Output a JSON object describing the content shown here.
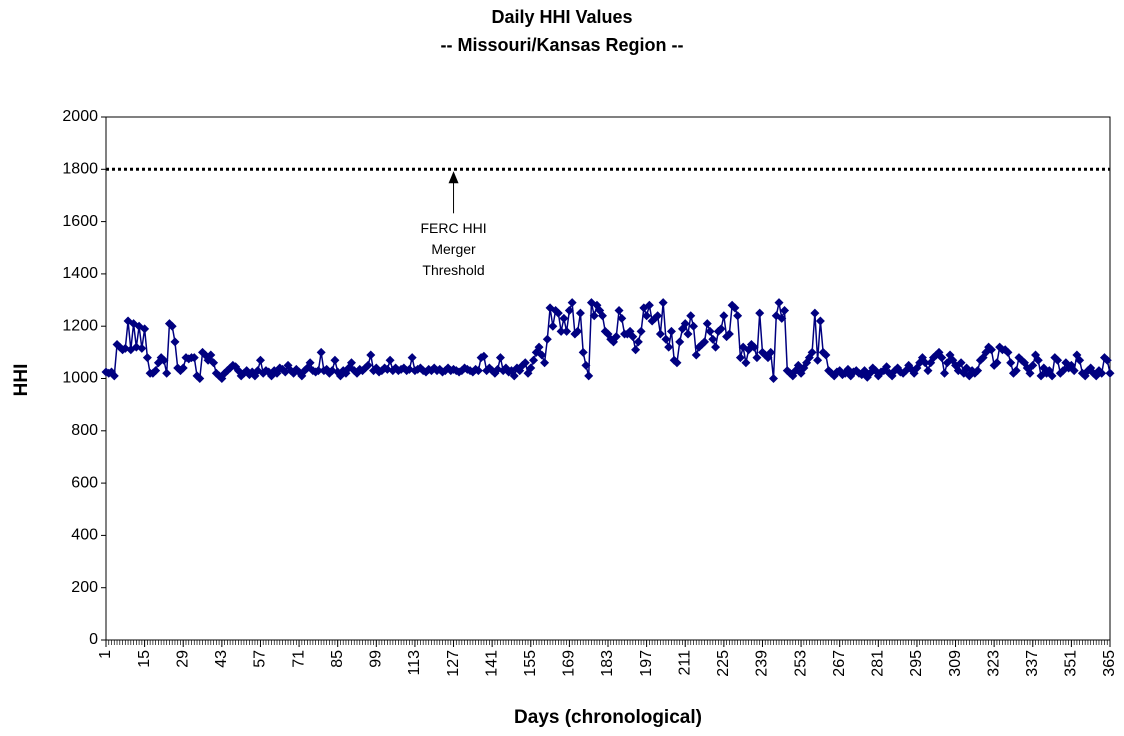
{
  "chart_data": {
    "type": "line",
    "title": [
      "Daily HHI Values",
      "-- Missouri/Kansas Region --"
    ],
    "x_label": "Days (chronological)",
    "y_label": "HHI",
    "x": [
      1,
      2,
      3,
      4,
      5,
      6,
      7,
      8,
      9,
      10,
      11,
      12,
      13,
      14,
      15,
      16,
      17,
      18,
      19,
      20,
      21,
      22,
      23,
      24,
      25,
      26,
      27,
      28,
      29,
      30,
      31,
      32,
      33,
      34,
      35,
      36,
      37,
      38,
      39,
      40,
      41,
      42,
      43,
      44,
      45,
      46,
      47,
      48,
      49,
      50,
      51,
      52,
      53,
      54,
      55,
      56,
      57,
      58,
      59,
      60,
      61,
      62,
      63,
      64,
      65,
      66,
      67,
      68,
      69,
      70,
      71,
      72,
      73,
      74,
      75,
      76,
      77,
      78,
      79,
      80,
      81,
      82,
      83,
      84,
      85,
      86,
      87,
      88,
      89,
      90,
      91,
      92,
      93,
      94,
      95,
      96,
      97,
      98,
      99,
      100,
      101,
      102,
      103,
      104,
      105,
      106,
      107,
      108,
      109,
      110,
      111,
      112,
      113,
      114,
      115,
      116,
      117,
      118,
      119,
      120,
      121,
      122,
      123,
      124,
      125,
      126,
      127,
      128,
      129,
      130,
      131,
      132,
      133,
      134,
      135,
      136,
      137,
      138,
      139,
      140,
      141,
      142,
      143,
      144,
      145,
      146,
      147,
      148,
      149,
      150,
      151,
      152,
      153,
      154,
      155,
      156,
      157,
      158,
      159,
      160,
      161,
      162,
      163,
      164,
      165,
      166,
      167,
      168,
      169,
      170,
      171,
      172,
      173,
      174,
      175,
      176,
      177,
      178,
      179,
      180,
      181,
      182,
      183,
      184,
      185,
      186,
      187,
      188,
      189,
      190,
      191,
      192,
      193,
      194,
      195,
      196,
      197,
      198,
      199,
      200,
      201,
      202,
      203,
      204,
      205,
      206,
      207,
      208,
      209,
      210,
      211,
      212,
      213,
      214,
      215,
      216,
      217,
      218,
      219,
      220,
      221,
      222,
      223,
      224,
      225,
      226,
      227,
      228,
      229,
      230,
      231,
      232,
      233,
      234,
      235,
      236,
      237,
      238,
      239,
      240,
      241,
      242,
      243,
      244,
      245,
      246,
      247,
      248,
      249,
      250,
      251,
      252,
      253,
      254,
      255,
      256,
      257,
      258,
      259,
      260,
      261,
      262,
      263,
      264,
      265,
      266,
      267,
      268,
      269,
      270,
      271,
      272,
      273,
      274,
      275,
      276,
      277,
      278,
      279,
      280,
      281,
      282,
      283,
      284,
      285,
      286,
      287,
      288,
      289,
      290,
      291,
      292,
      293,
      294,
      295,
      296,
      297,
      298,
      299,
      300,
      301,
      302,
      303,
      304,
      305,
      306,
      307,
      308,
      309,
      310,
      311,
      312,
      313,
      314,
      315,
      316,
      317,
      318,
      319,
      320,
      321,
      322,
      323,
      324,
      325,
      326,
      327,
      328,
      329,
      330,
      331,
      332,
      333,
      334,
      335,
      336,
      337,
      338,
      339,
      340,
      341,
      342,
      343,
      344,
      345,
      346,
      347,
      348,
      349,
      350,
      351,
      352,
      353,
      354,
      355,
      356,
      357,
      358,
      359,
      360,
      361,
      362,
      363,
      364,
      365
    ],
    "series": [
      {
        "name": "HHI",
        "color": "#000080",
        "values": [
          1025,
          1020,
          1025,
          1010,
          1130,
          1120,
          1110,
          1115,
          1220,
          1110,
          1210,
          1120,
          1200,
          1115,
          1190,
          1080,
          1020,
          1020,
          1030,
          1060,
          1080,
          1070,
          1020,
          1210,
          1200,
          1140,
          1040,
          1030,
          1040,
          1080,
          1075,
          1080,
          1080,
          1010,
          1000,
          1100,
          1090,
          1070,
          1090,
          1060,
          1020,
          1010,
          1000,
          1020,
          1030,
          1040,
          1050,
          1045,
          1030,
          1010,
          1020,
          1030,
          1015,
          1025,
          1010,
          1030,
          1070,
          1020,
          1030,
          1025,
          1010,
          1030,
          1020,
          1040,
          1035,
          1025,
          1050,
          1030,
          1020,
          1035,
          1025,
          1010,
          1030,
          1040,
          1060,
          1030,
          1025,
          1030,
          1100,
          1030,
          1035,
          1020,
          1030,
          1070,
          1025,
          1010,
          1030,
          1020,
          1040,
          1060,
          1030,
          1020,
          1035,
          1030,
          1040,
          1050,
          1090,
          1030,
          1040,
          1025,
          1030,
          1040,
          1035,
          1070,
          1030,
          1040,
          1030,
          1035,
          1040,
          1030,
          1035,
          1080,
          1030,
          1035,
          1040,
          1030,
          1025,
          1035,
          1030,
          1040,
          1030,
          1035,
          1025,
          1030,
          1040,
          1030,
          1035,
          1030,
          1025,
          1030,
          1040,
          1035,
          1030,
          1025,
          1035,
          1030,
          1080,
          1085,
          1030,
          1040,
          1030,
          1020,
          1035,
          1080,
          1030,
          1040,
          1025,
          1030,
          1010,
          1040,
          1030,
          1050,
          1060,
          1020,
          1040,
          1070,
          1100,
          1120,
          1090,
          1060,
          1150,
          1270,
          1200,
          1260,
          1250,
          1180,
          1230,
          1180,
          1260,
          1290,
          1170,
          1180,
          1250,
          1100,
          1050,
          1010,
          1290,
          1240,
          1280,
          1260,
          1240,
          1180,
          1170,
          1150,
          1140,
          1160,
          1260,
          1230,
          1170,
          1170,
          1180,
          1160,
          1110,
          1140,
          1180,
          1270,
          1240,
          1280,
          1220,
          1230,
          1240,
          1170,
          1290,
          1150,
          1120,
          1180,
          1070,
          1060,
          1140,
          1190,
          1210,
          1170,
          1240,
          1200,
          1090,
          1120,
          1130,
          1140,
          1210,
          1180,
          1150,
          1120,
          1180,
          1190,
          1240,
          1160,
          1170,
          1280,
          1270,
          1240,
          1080,
          1120,
          1060,
          1110,
          1130,
          1120,
          1080,
          1250,
          1100,
          1090,
          1080,
          1100,
          1000,
          1240,
          1290,
          1230,
          1260,
          1030,
          1020,
          1010,
          1030,
          1050,
          1020,
          1040,
          1060,
          1080,
          1100,
          1250,
          1070,
          1220,
          1100,
          1090,
          1030,
          1020,
          1010,
          1025,
          1030,
          1015,
          1020,
          1035,
          1010,
          1025,
          1030,
          1020,
          1015,
          1030,
          1005,
          1020,
          1040,
          1030,
          1010,
          1025,
          1030,
          1045,
          1020,
          1010,
          1030,
          1040,
          1025,
          1020,
          1030,
          1050,
          1035,
          1020,
          1040,
          1060,
          1080,
          1060,
          1030,
          1060,
          1080,
          1090,
          1100,
          1080,
          1020,
          1060,
          1090,
          1070,
          1050,
          1030,
          1060,
          1020,
          1040,
          1010,
          1030,
          1020,
          1030,
          1070,
          1080,
          1100,
          1120,
          1110,
          1050,
          1060,
          1120,
          1110,
          1110,
          1100,
          1060,
          1020,
          1030,
          1080,
          1070,
          1060,
          1040,
          1020,
          1050,
          1090,
          1070,
          1010,
          1040,
          1020,
          1030,
          1010,
          1080,
          1070,
          1020,
          1030,
          1060,
          1040,
          1050,
          1030,
          1090,
          1070,
          1020,
          1010,
          1030,
          1040,
          1020,
          1010,
          1030,
          1020,
          1080,
          1070,
          1020
        ]
      }
    ],
    "threshold": {
      "value": 1800,
      "x": 127,
      "label": [
        "FERC HHI",
        "Merger",
        "Threshold"
      ]
    },
    "xlim": [
      1,
      365
    ],
    "xticks": [
      1,
      15,
      29,
      43,
      57,
      71,
      85,
      99,
      113,
      127,
      141,
      155,
      169,
      183,
      197,
      211,
      225,
      239,
      253,
      267,
      281,
      295,
      309,
      323,
      337,
      351,
      365
    ],
    "ylim": [
      0,
      2000
    ],
    "yticks": [
      0,
      200,
      400,
      600,
      800,
      1000,
      1200,
      1400,
      1600,
      1800,
      2000
    ],
    "grid": false
  }
}
